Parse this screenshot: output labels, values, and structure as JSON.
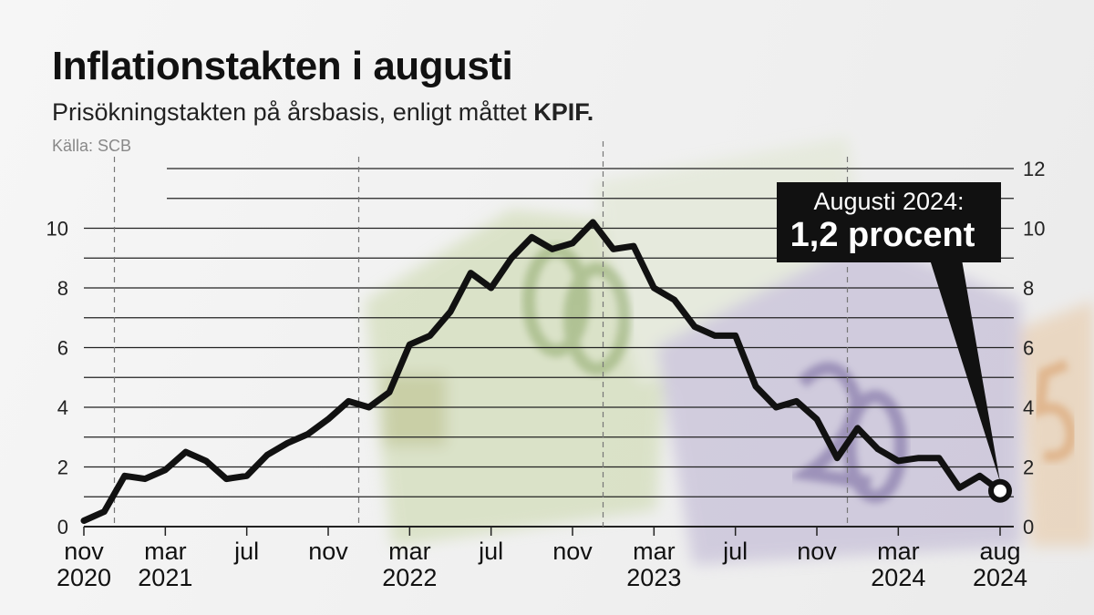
{
  "title": "Inflationstakten i augusti",
  "subtitle": "Prisökningstakten på årsbasis, enligt måttet",
  "subtitle_bold": "KPIF.",
  "source": "Källa: SCB",
  "colors": {
    "line": "#111111",
    "grid": "#222222",
    "callout_bg": "#111111",
    "callout_text": "#ffffff"
  },
  "chart_data": {
    "type": "line",
    "title": "Inflationstakten i augusti",
    "ylim": [
      0,
      12
    ],
    "y_ticks_left": [
      0,
      2,
      4,
      6,
      8,
      10
    ],
    "y_ticks_right": [
      0,
      2,
      4,
      6,
      8,
      10,
      12
    ],
    "grid": true,
    "x_tick_labels": [
      {
        "month": "nov",
        "year": "2020",
        "index": 0
      },
      {
        "month": "mar",
        "year": "2021",
        "index": 4
      },
      {
        "month": "jul",
        "year": "",
        "index": 8
      },
      {
        "month": "nov",
        "year": "",
        "index": 12
      },
      {
        "month": "mar",
        "year": "2022",
        "index": 16
      },
      {
        "month": "jul",
        "year": "",
        "index": 20
      },
      {
        "month": "nov",
        "year": "",
        "index": 24
      },
      {
        "month": "mar",
        "year": "2023",
        "index": 28
      },
      {
        "month": "jul",
        "year": "",
        "index": 32
      },
      {
        "month": "nov",
        "year": "",
        "index": 36
      },
      {
        "month": "mar",
        "year": "2024",
        "index": 40
      },
      {
        "month": "aug",
        "year": "2024",
        "index": 45
      }
    ],
    "year_dividers": [
      1.5,
      13.5,
      25.5,
      37.5
    ],
    "series": [
      {
        "x": [
          "2020-11",
          "2020-12",
          "2021-01",
          "2021-02",
          "2021-03",
          "2021-04",
          "2021-05",
          "2021-06",
          "2021-07",
          "2021-08",
          "2021-09",
          "2021-10",
          "2021-11",
          "2021-12",
          "2022-01",
          "2022-02",
          "2022-03",
          "2022-04",
          "2022-05",
          "2022-06",
          "2022-07",
          "2022-08",
          "2022-09",
          "2022-10",
          "2022-11",
          "2022-12",
          "2023-01",
          "2023-02",
          "2023-03",
          "2023-04",
          "2023-05",
          "2023-06",
          "2023-07",
          "2023-08",
          "2023-09",
          "2023-10",
          "2023-11",
          "2023-12",
          "2024-01",
          "2024-02",
          "2024-03",
          "2024-04",
          "2024-05",
          "2024-06",
          "2024-07",
          "2024-08"
        ],
        "values": [
          0.2,
          0.5,
          1.7,
          1.6,
          1.9,
          2.5,
          2.2,
          1.6,
          1.7,
          2.4,
          2.8,
          3.1,
          3.6,
          4.2,
          4.0,
          4.5,
          6.1,
          6.4,
          7.2,
          8.5,
          8.0,
          9.0,
          9.7,
          9.3,
          9.5,
          10.2,
          9.3,
          9.4,
          8.0,
          7.6,
          6.7,
          6.4,
          6.4,
          4.7,
          4.0,
          4.2,
          3.6,
          2.3,
          3.3,
          2.6,
          2.2,
          2.3,
          2.3,
          1.3,
          1.7,
          1.2
        ]
      }
    ],
    "annotation": {
      "label": "Augusti 2024:",
      "value": "1,2 procent"
    }
  }
}
